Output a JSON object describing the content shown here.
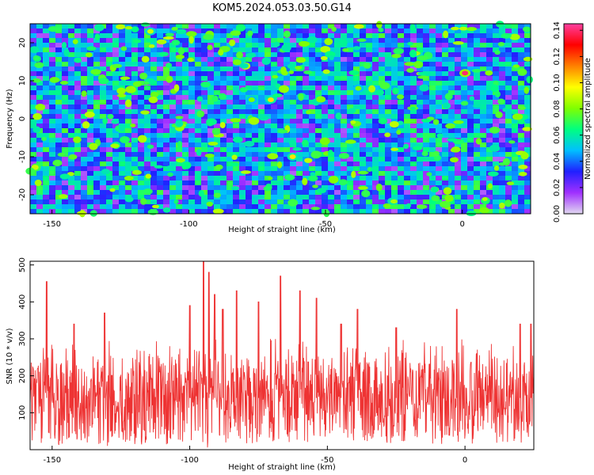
{
  "title": "KOM5.2024.053.03.50.G14",
  "chart_data": [
    {
      "type": "heatmap",
      "xlabel": "Height of straight line (km)",
      "ylabel": "Frequency (Hz)",
      "xlim": [
        -158,
        25
      ],
      "ylim": [
        -25,
        25
      ],
      "x_ticks": [
        -150,
        -100,
        -50,
        0
      ],
      "x_tick_labels": [
        "-150",
        "-100",
        "-50",
        "0"
      ],
      "y_ticks": [
        20,
        10,
        0,
        -10,
        -20
      ],
      "y_tick_labels": [
        "20",
        "10",
        "0",
        "-10",
        "-20"
      ],
      "colorbar": {
        "label": "Normalized spectral amplitude",
        "range": [
          0,
          0.145
        ],
        "ticks": [
          0,
          0.02,
          0.04,
          0.06,
          0.08,
          0.1,
          0.12,
          0.14
        ],
        "tick_labels": [
          "0.00",
          "0.02",
          "0.04",
          "0.06",
          "0.08",
          "0.10",
          "0.12",
          "0.14"
        ],
        "colors": [
          "#e0d8f0",
          "#a030ff",
          "#2020ff",
          "#00c0ff",
          "#00ff80",
          "#80ff00",
          "#ffff00",
          "#ff8000",
          "#ff0000",
          "#ff40a0"
        ]
      },
      "hotspots": [
        {
          "x": 1,
          "y": 12,
          "v": 0.14
        },
        {
          "x": -70,
          "y": 5,
          "v": 0.1
        },
        {
          "x": -62,
          "y": -10,
          "v": 0.1
        },
        {
          "x": -114,
          "y": 23,
          "v": 0.09
        },
        {
          "x": -77,
          "y": 5,
          "v": 0.08
        },
        {
          "x": -38,
          "y": 8,
          "v": 0.08
        }
      ]
    },
    {
      "type": "line",
      "xlabel": "Height of straight line (km)",
      "ylabel": "SNR (10 * v/v)",
      "xlim": [
        -158,
        25
      ],
      "ylim": [
        0,
        510
      ],
      "x_ticks": [
        -150,
        -100,
        -50,
        0
      ],
      "x_tick_labels": [
        "-150",
        "-100",
        "-50",
        "0"
      ],
      "y_ticks": [
        100,
        200,
        300,
        400,
        500
      ],
      "y_tick_labels": [
        "100",
        "200",
        "300",
        "400",
        "500"
      ],
      "series": [
        {
          "color": "#ee3333",
          "baseline": 140,
          "peaks": [
            {
              "x": -152,
              "y": 455
            },
            {
              "x": -142,
              "y": 340
            },
            {
              "x": -131,
              "y": 370
            },
            {
              "x": -100,
              "y": 390
            },
            {
              "x": -95,
              "y": 510
            },
            {
              "x": -93,
              "y": 480
            },
            {
              "x": -91,
              "y": 420
            },
            {
              "x": -88,
              "y": 380
            },
            {
              "x": -83,
              "y": 430
            },
            {
              "x": -75,
              "y": 400
            },
            {
              "x": -67,
              "y": 470
            },
            {
              "x": -60,
              "y": 430
            },
            {
              "x": -54,
              "y": 410
            },
            {
              "x": -45,
              "y": 340
            },
            {
              "x": -39,
              "y": 380
            },
            {
              "x": -25,
              "y": 330
            },
            {
              "x": -3,
              "y": 380
            },
            {
              "x": 20,
              "y": 340
            },
            {
              "x": 24,
              "y": 340
            }
          ]
        }
      ]
    }
  ]
}
